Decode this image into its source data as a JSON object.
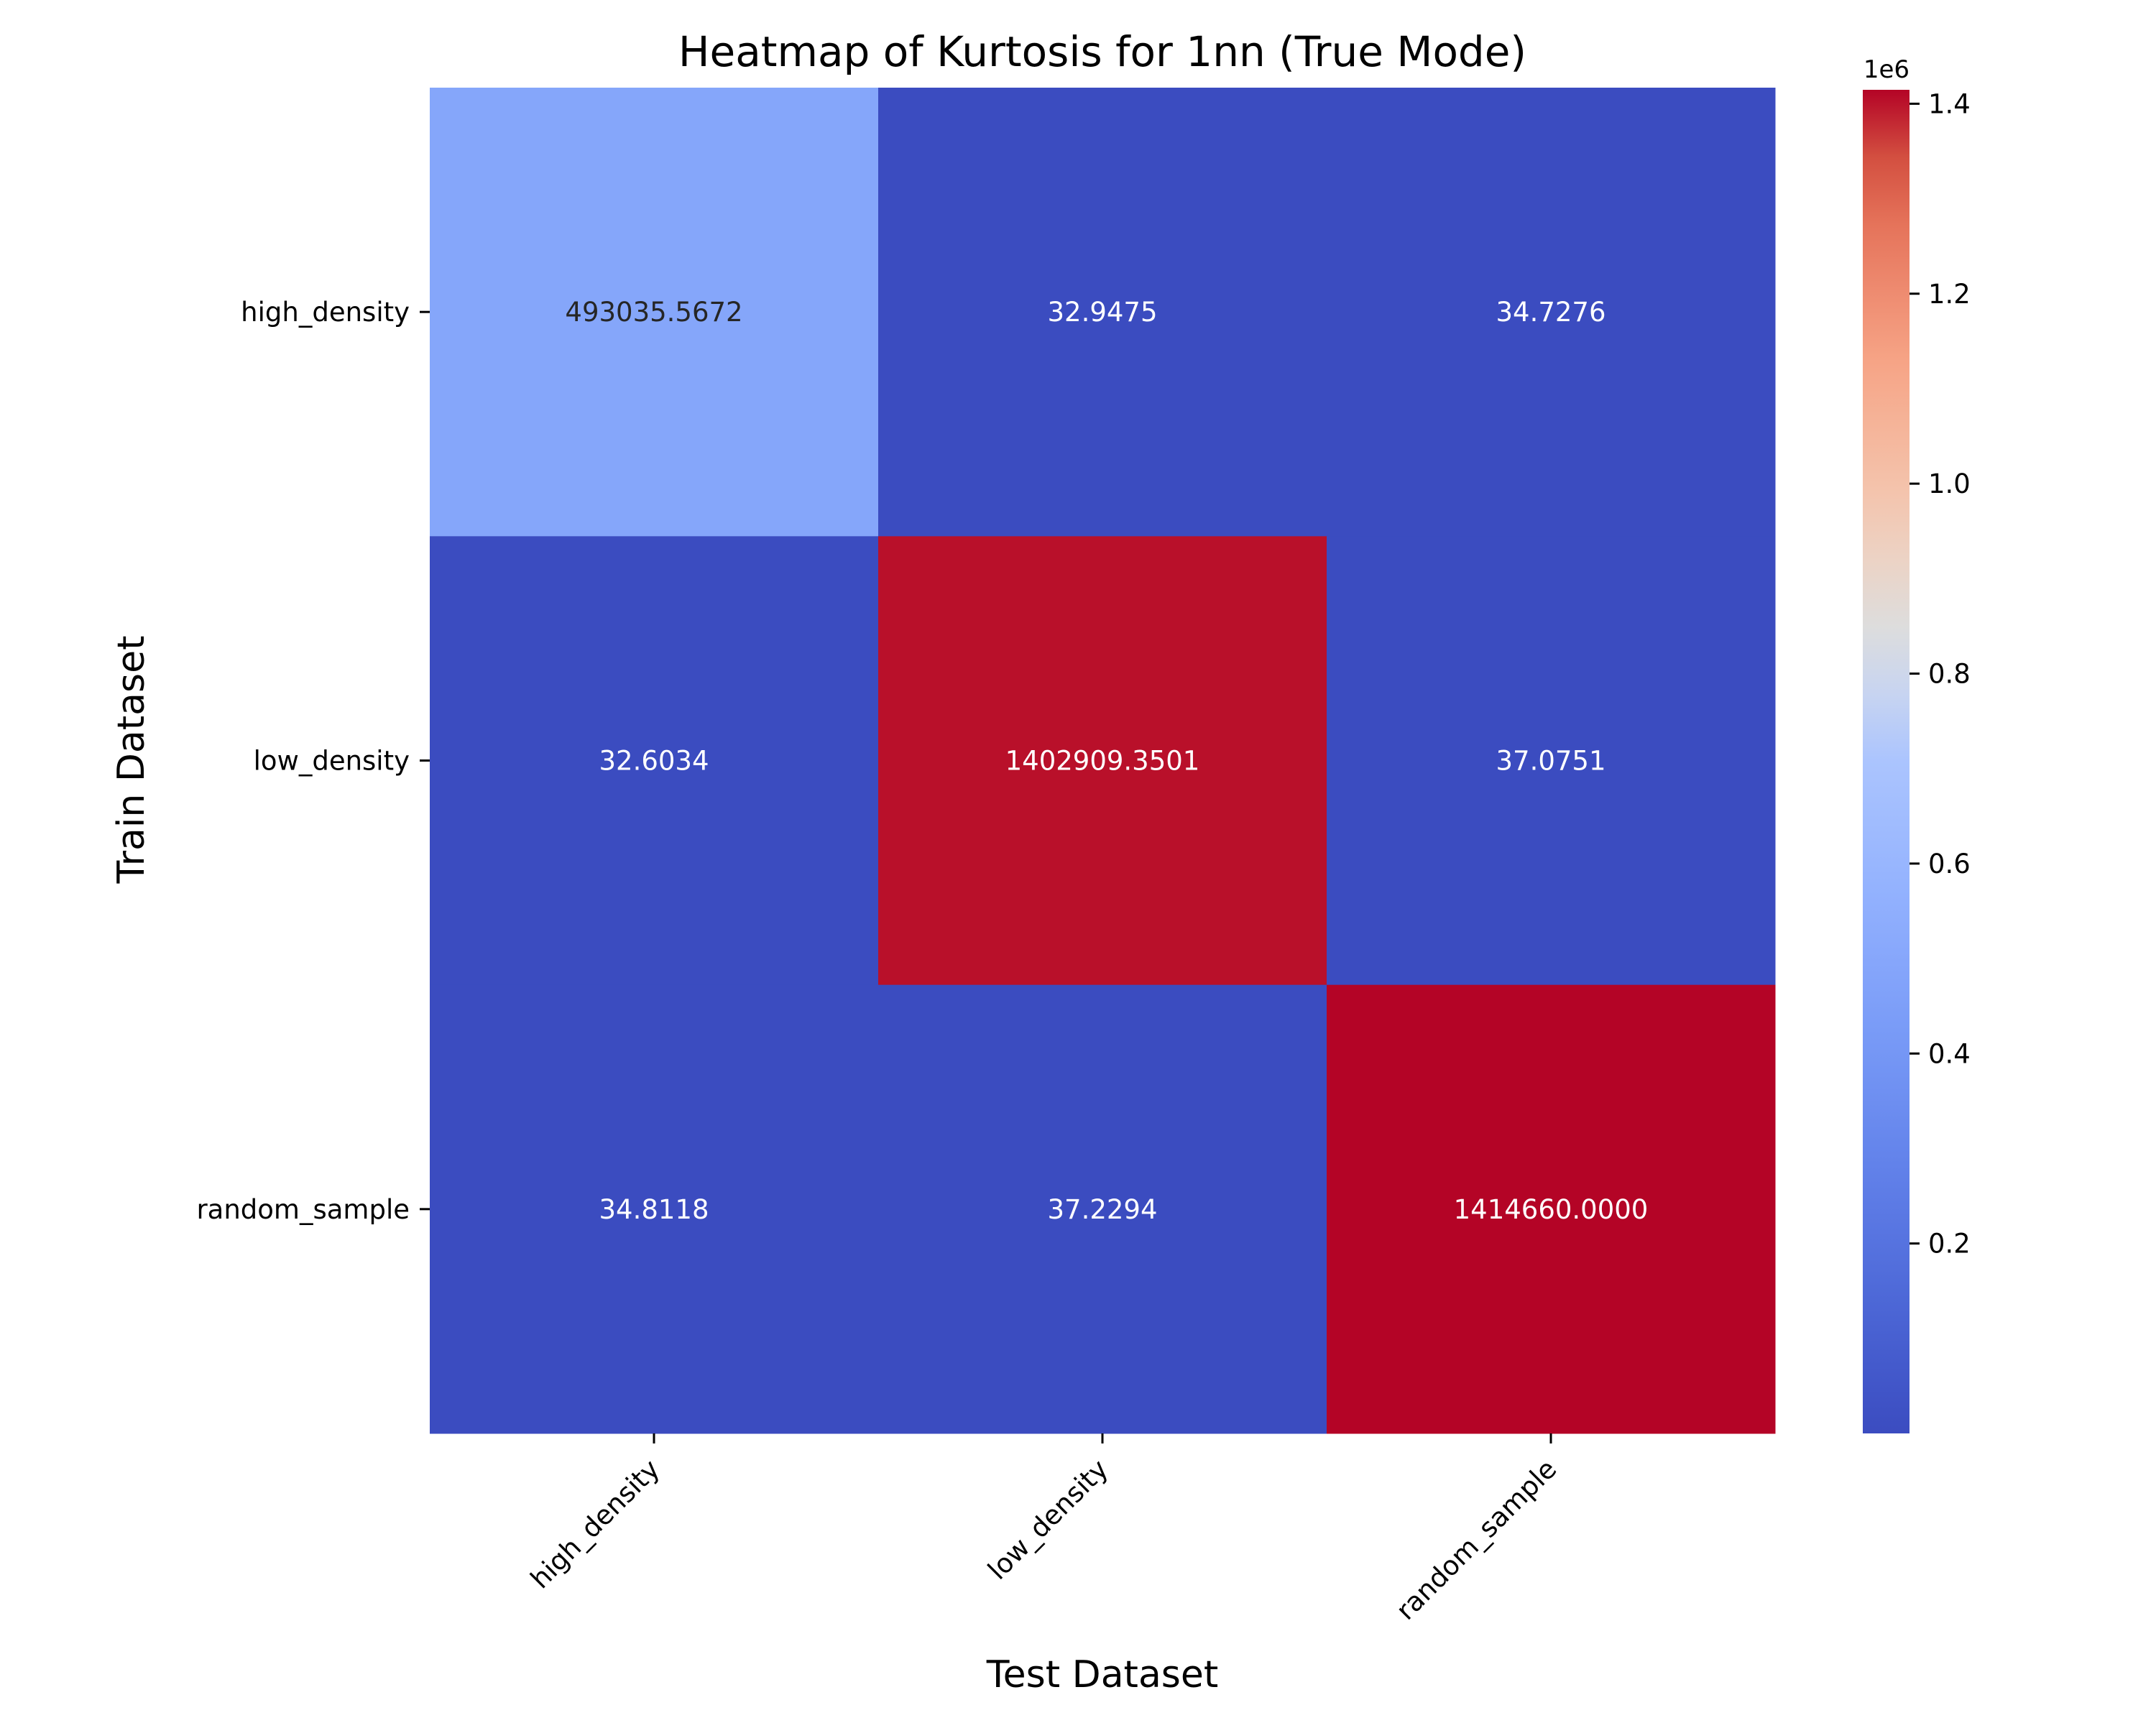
{
  "chart_data": {
    "type": "heatmap",
    "title": "Heatmap of Kurtosis for 1nn (True Mode)",
    "xlabel": "Test Dataset",
    "ylabel": "Train Dataset",
    "x_categories": [
      "high_density",
      "low_density",
      "random_sample"
    ],
    "y_categories": [
      "high_density",
      "low_density",
      "random_sample"
    ],
    "values": [
      [
        493035.5672,
        32.9475,
        34.7276
      ],
      [
        32.6034,
        1402909.3501,
        37.0751
      ],
      [
        34.8118,
        37.2294,
        1414660.0
      ]
    ],
    "cell_labels": [
      [
        "493035.5672",
        "32.9475",
        "34.7276"
      ],
      [
        "32.6034",
        "1402909.3501",
        "37.0751"
      ],
      [
        "34.8118",
        "37.2294",
        "1414660.0000"
      ]
    ],
    "colormap": "coolwarm",
    "color_range": [
      32.6034,
      1414660.0
    ],
    "colorbar": {
      "offset_label": "1e6",
      "ticks": [
        0.2,
        0.4,
        0.6,
        0.8,
        1.0,
        1.2,
        1.4
      ],
      "tick_labels": [
        "0.2",
        "0.4",
        "0.6",
        "0.8",
        "1.0",
        "1.2",
        "1.4"
      ],
      "scale": 1000000
    },
    "colors": {
      "low": "#3b4cc0",
      "high": "#b40426"
    }
  }
}
